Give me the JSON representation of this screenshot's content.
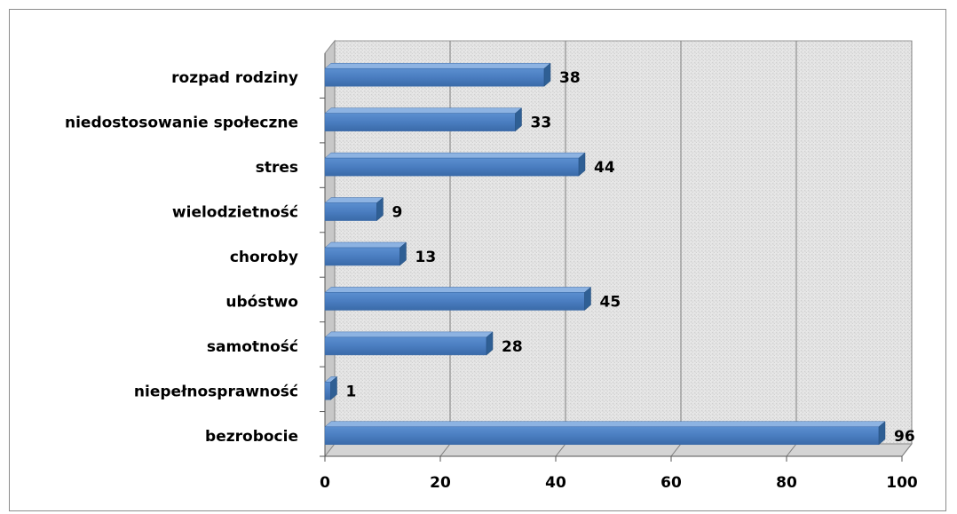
{
  "chart_data": {
    "type": "bar",
    "orientation": "horizontal",
    "style": "3d",
    "categories": [
      "rozpad rodziny",
      "niedostosowanie społeczne",
      "stres",
      "wielodzietność",
      "choroby",
      "ubóstwo",
      "samotność",
      "niepełnosprawność",
      "bezrobocie"
    ],
    "values": [
      38,
      33,
      44,
      9,
      13,
      45,
      28,
      1,
      96
    ],
    "xlim": [
      0,
      100
    ],
    "xticks": [
      0,
      20,
      40,
      60,
      80,
      100
    ],
    "grid": true,
    "legend": "none",
    "colors": {
      "bar_front": "#4f81bd",
      "bar_top": "#8db3e2",
      "bar_side": "#2f5f94",
      "plot_back": "#e3e3e3",
      "plot_floor": "#d4d4d4",
      "gridline": "#7f7f7f"
    }
  }
}
